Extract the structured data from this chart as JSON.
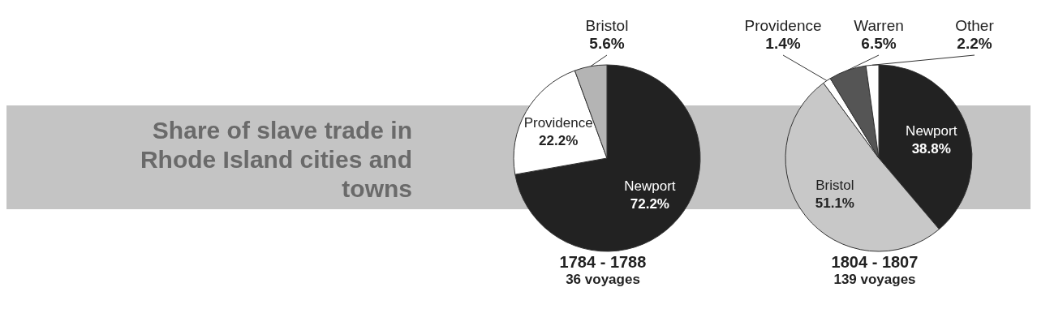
{
  "chart_data": [
    {
      "type": "pie",
      "title": "Share of slave trade in Rhode Island cities and towns",
      "xlabel": "1784 - 1788",
      "annotations": [
        "36 voyages"
      ],
      "categories": [
        "Newport",
        "Providence",
        "Bristol"
      ],
      "values": [
        72.2,
        22.2,
        5.6
      ],
      "value_labels": [
        "72.2%",
        "22.2%",
        "5.6%"
      ],
      "colors": [
        "#222222",
        "#ffffff",
        "#b4b4b4"
      ]
    },
    {
      "type": "pie",
      "xlabel": "1804 - 1807",
      "annotations": [
        "139 voyages"
      ],
      "categories": [
        "Newport",
        "Bristol",
        "Providence",
        "Warren",
        "Other"
      ],
      "values": [
        38.8,
        51.1,
        1.4,
        6.5,
        2.2
      ],
      "value_labels": [
        "38.8%",
        "51.1%",
        "1.4%",
        "6.5%",
        "2.2%"
      ],
      "colors": [
        "#222222",
        "#c8c8c8",
        "#ffffff",
        "#555555",
        "#ffffff"
      ]
    }
  ]
}
